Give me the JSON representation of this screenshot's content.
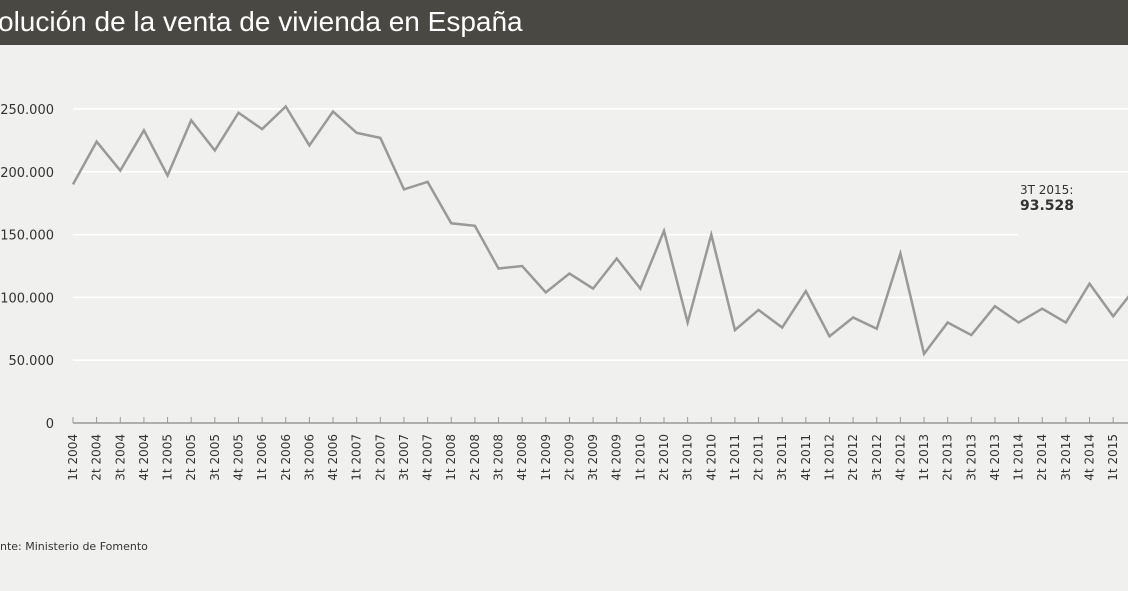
{
  "title": "olución de la venta de vivienda en España",
  "source": "nte: Ministerio de Fomento",
  "annotation": {
    "label": "3T 2015:",
    "value": "93.528"
  },
  "colors": {
    "header": "#4a4843",
    "background": "#f0f1ee",
    "line": "#999999",
    "grid": "#ffffff"
  },
  "chart_data": {
    "type": "line",
    "title": "",
    "xlabel": "",
    "ylabel": "",
    "ylim": [
      0,
      250000
    ],
    "yticks": [
      0,
      50000,
      100000,
      150000,
      200000,
      250000
    ],
    "ytick_labels": [
      "0",
      "50.000",
      "100.000",
      "150.000",
      "200.000",
      "250.000"
    ],
    "grid": true,
    "categories": [
      "1t 2004",
      "2t 2004",
      "3t 2004",
      "4t 2004",
      "1t 2005",
      "2t 2005",
      "3t 2005",
      "4t 2005",
      "1t 2006",
      "2t 2006",
      "3t 2006",
      "4t 2006",
      "1t 2007",
      "2t 2007",
      "3t 2007",
      "4t 2007",
      "1t 2008",
      "2t 2008",
      "3t 2008",
      "4t 2008",
      "1t 2009",
      "2t 2009",
      "3t 2009",
      "4t 2009",
      "1t 2010",
      "2t 2010",
      "3t 2010",
      "4t 2010",
      "1t 2011",
      "2t 2011",
      "3t 2011",
      "4t 2011",
      "1t 2012",
      "2t 2012",
      "3t 2012",
      "4t 2012",
      "1t 2013",
      "2t 2013",
      "3t 2013",
      "4t 2013",
      "1t 2014",
      "2t 2014",
      "3t 2014",
      "4t 2014",
      "1t 2015"
    ],
    "values": [
      190000,
      224000,
      201000,
      233000,
      197000,
      241000,
      217000,
      247000,
      234000,
      252000,
      221000,
      248000,
      231000,
      227000,
      186000,
      192000,
      159000,
      157000,
      123000,
      125000,
      104000,
      119000,
      107000,
      131000,
      107000,
      153000,
      80000,
      150000,
      74000,
      90000,
      76000,
      105000,
      69000,
      84000,
      75000,
      135000,
      55000,
      80000,
      70000,
      93000,
      80000,
      91000,
      80000,
      111000,
      85000
    ],
    "continues_right_to": 109000
  }
}
